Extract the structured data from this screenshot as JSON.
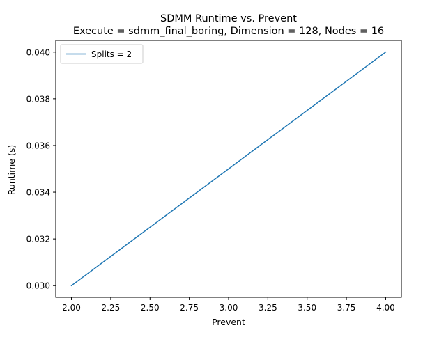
{
  "chart_data": {
    "type": "line",
    "title": "SDMM Runtime vs. Prevent",
    "subtitle": "Execute = sdmm_final_boring, Dimension = 128, Nodes = 16",
    "xlabel": "Prevent",
    "ylabel": "Runtime (s)",
    "xlim": [
      1.9,
      4.1
    ],
    "ylim": [
      0.0295,
      0.0405
    ],
    "xticks": [
      2.0,
      2.25,
      2.5,
      2.75,
      3.0,
      3.25,
      3.5,
      3.75,
      4.0
    ],
    "xtick_labels": [
      "2.00",
      "2.25",
      "2.50",
      "2.75",
      "3.00",
      "3.25",
      "3.50",
      "3.75",
      "4.00"
    ],
    "yticks": [
      0.03,
      0.032,
      0.034,
      0.036,
      0.038,
      0.04
    ],
    "ytick_labels": [
      "0.030",
      "0.032",
      "0.034",
      "0.036",
      "0.038",
      "0.040"
    ],
    "grid": false,
    "legend_position": "top-left",
    "series": [
      {
        "name": "Splits = 2",
        "color": "#1f77b4",
        "x": [
          2.0,
          4.0
        ],
        "y": [
          0.03,
          0.04
        ]
      }
    ]
  }
}
